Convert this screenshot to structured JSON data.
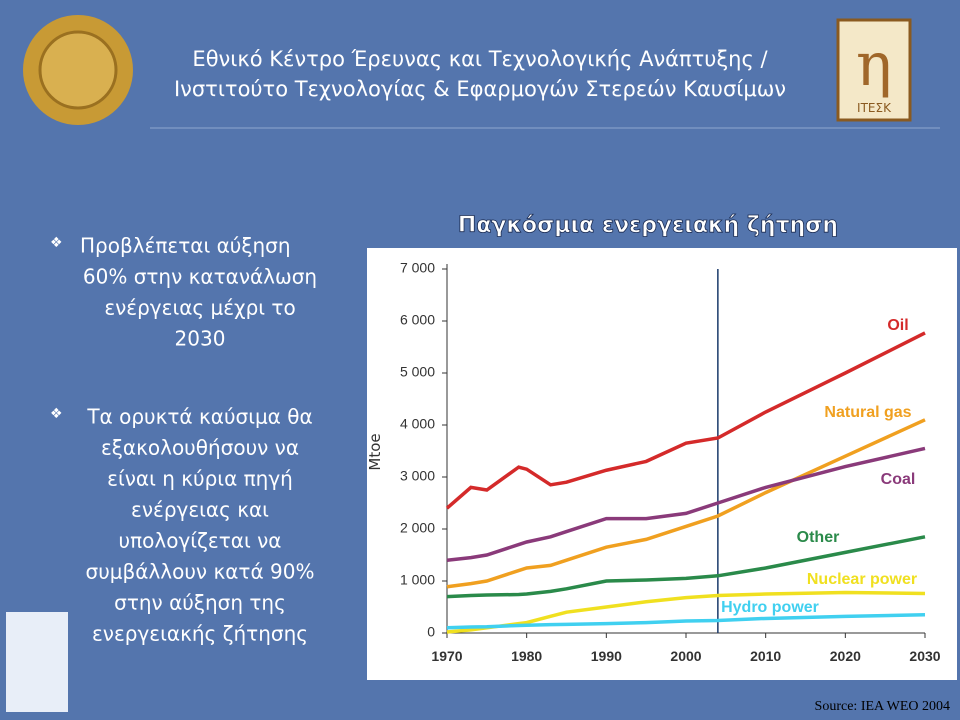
{
  "header": {
    "title_lines": [
      "Εθνικό Κέντρο Έρευνας και Τεχνολογικής Ανάπτυξης /",
      "Ινστιτούτο Τεχνολογίας & Εφαρμογών Στερεών Καυσίμων"
    ],
    "logo_text": "ΙΤΕΣΚ"
  },
  "bullets": [
    {
      "lines": [
        "Προβλέπεται αύξηση",
        "60% στην κατανάλωση",
        "ενέργειας μέχρι το",
        "2030"
      ]
    },
    {
      "lines": [
        "Τα ορυκτά καύσιμα θα",
        "εξακολουθήσουν να",
        "είναι η κύρια πηγή",
        "ενέργειας και",
        "υπολογίζεται να",
        "συμβάλλουν κατά 90%",
        "στην αύξηση της",
        "ενεργειακής ζήτησης"
      ]
    }
  ],
  "chart_data": {
    "type": "line",
    "title": "Παγκόσμια ενεργειακή ζήτηση",
    "y_label": "Mtoe",
    "x": [
      1970,
      1973,
      1975,
      1979,
      1980,
      1983,
      1985,
      1990,
      1995,
      2000,
      2004,
      2010,
      2020,
      2030
    ],
    "series": [
      {
        "name": "Oil",
        "color": "#d42a2a",
        "values": [
          2400,
          2800,
          2750,
          3190,
          3150,
          2850,
          2900,
          3130,
          3300,
          3650,
          3750,
          4250,
          5000,
          5770
        ]
      },
      {
        "name": "Natural gas",
        "color": "#f0a020",
        "values": [
          890,
          950,
          1000,
          1200,
          1250,
          1300,
          1400,
          1650,
          1800,
          2050,
          2250,
          2700,
          3400,
          4100
        ]
      },
      {
        "name": "Coal",
        "color": "#8a3a7a",
        "values": [
          1400,
          1450,
          1500,
          1700,
          1750,
          1850,
          1950,
          2200,
          2200,
          2300,
          2500,
          2800,
          3200,
          3550
        ]
      },
      {
        "name": "Other",
        "color": "#2a8a4a",
        "values": [
          700,
          720,
          730,
          740,
          750,
          800,
          850,
          1000,
          1020,
          1050,
          1100,
          1250,
          1550,
          1850
        ]
      },
      {
        "name": "Nuclear power",
        "color": "#f0e020",
        "values": [
          20,
          60,
          100,
          180,
          200,
          320,
          400,
          500,
          600,
          680,
          720,
          750,
          780,
          760
        ]
      },
      {
        "name": "Hydro power",
        "color": "#40d0f0",
        "values": [
          100,
          115,
          120,
          145,
          150,
          160,
          165,
          180,
          200,
          230,
          240,
          280,
          320,
          350
        ]
      }
    ],
    "marker_x": 2004,
    "xlim": [
      1970,
      2030
    ],
    "xticks": [
      1970,
      1980,
      1990,
      2000,
      2010,
      2020,
      2030
    ],
    "ylim": [
      0,
      7000
    ],
    "yticks": [
      {
        "value": 0,
        "label": "0"
      },
      {
        "value": 1000,
        "label": "1 000"
      },
      {
        "value": 2000,
        "label": "2 000"
      },
      {
        "value": 3000,
        "label": "3 000"
      },
      {
        "value": 4000,
        "label": "4 000"
      },
      {
        "value": 5000,
        "label": "5 000"
      },
      {
        "value": 6000,
        "label": "6 000"
      },
      {
        "value": 7000,
        "label": "7 000"
      }
    ]
  },
  "source": "Source: IEA WEO 2004"
}
